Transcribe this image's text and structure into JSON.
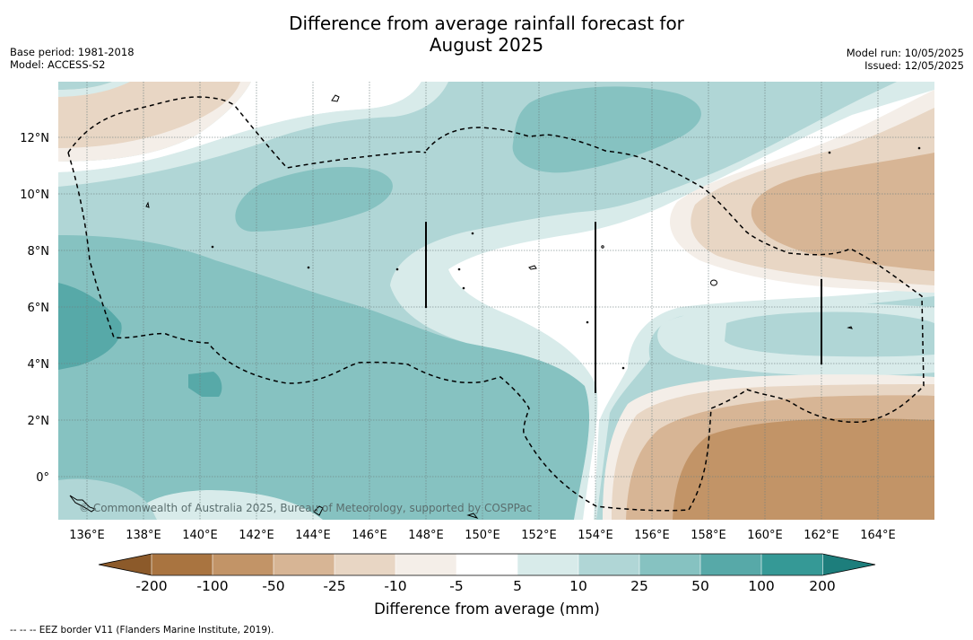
{
  "title_line1": "Difference from average rainfall forecast for",
  "title_line2": "August 2025",
  "base_period": "Base period: 1981-2018",
  "model": "Model: ACCESS-S2",
  "model_run": "Model run: 10/05/2025",
  "issued": "Issued: 12/05/2025",
  "copyright": "© Commonwealth of Australia 2025, Bureau of Meteorology, supported by COSPPac",
  "footer_note": "--  --  -- EEZ border V11 (Flanders Marine Institute, 2019).",
  "map": {
    "x_ticks": [
      "136°E",
      "138°E",
      "140°E",
      "142°E",
      "144°E",
      "146°E",
      "148°E",
      "150°E",
      "152°E",
      "154°E",
      "156°E",
      "158°E",
      "160°E",
      "162°E",
      "164°E"
    ],
    "y_ticks": [
      "12°N",
      "10°N",
      "8°N",
      "6°N",
      "4°N",
      "2°N",
      "0°"
    ]
  },
  "colorbar": {
    "label": "Difference from average (mm)",
    "ticks": [
      "-200",
      "-100",
      "-50",
      "-25",
      "-10",
      "-5",
      "5",
      "10",
      "25",
      "50",
      "100",
      "200"
    ],
    "colors": [
      "#8c5a2a",
      "#a97440",
      "#c29467",
      "#d7b595",
      "#e8d6c4",
      "#f4eee8",
      "#ffffff",
      "#d8ebea",
      "#b0d6d6",
      "#86c2c1",
      "#57a9a8",
      "#359996",
      "#1d7e7c"
    ]
  }
}
